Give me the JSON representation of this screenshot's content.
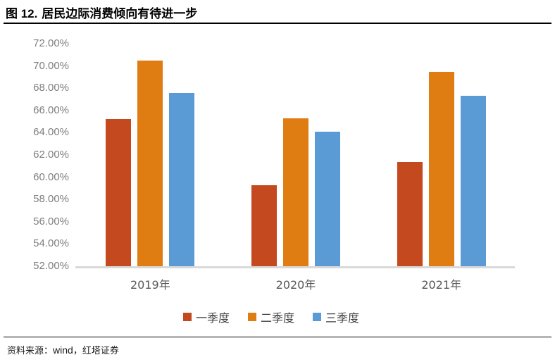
{
  "figure": {
    "label": "图 12.",
    "title": "居民边际消费倾向有待进一步"
  },
  "chart_data": {
    "type": "bar",
    "title": "图 12. 居民边际消费倾向有待进一步",
    "categories": [
      "2019年",
      "2020年",
      "2021年"
    ],
    "series": [
      {
        "name": "一季度",
        "color": "#C4491E",
        "values": [
          65.2,
          59.3,
          61.4
        ]
      },
      {
        "name": "二季度",
        "color": "#E07D12",
        "values": [
          70.5,
          65.3,
          69.5
        ]
      },
      {
        "name": "三季度",
        "color": "#5B9BD5",
        "values": [
          67.6,
          64.1,
          67.3
        ]
      }
    ],
    "xlabel": "",
    "ylabel": "",
    "ylim": [
      52,
      72
    ],
    "ytick_step": 2,
    "yticks": [
      "72.00%",
      "70.00%",
      "68.00%",
      "66.00%",
      "64.00%",
      "62.00%",
      "60.00%",
      "58.00%",
      "56.00%",
      "54.00%",
      "52.00%"
    ],
    "grid": false,
    "legend_position": "bottom",
    "axis_line_color": "#D9D9D9",
    "tick_label_color": "#7F7F7F"
  },
  "footer": {
    "prefix": "资料来源：",
    "source": "wind",
    "separator": "，",
    "publisher": "红塔证券"
  }
}
